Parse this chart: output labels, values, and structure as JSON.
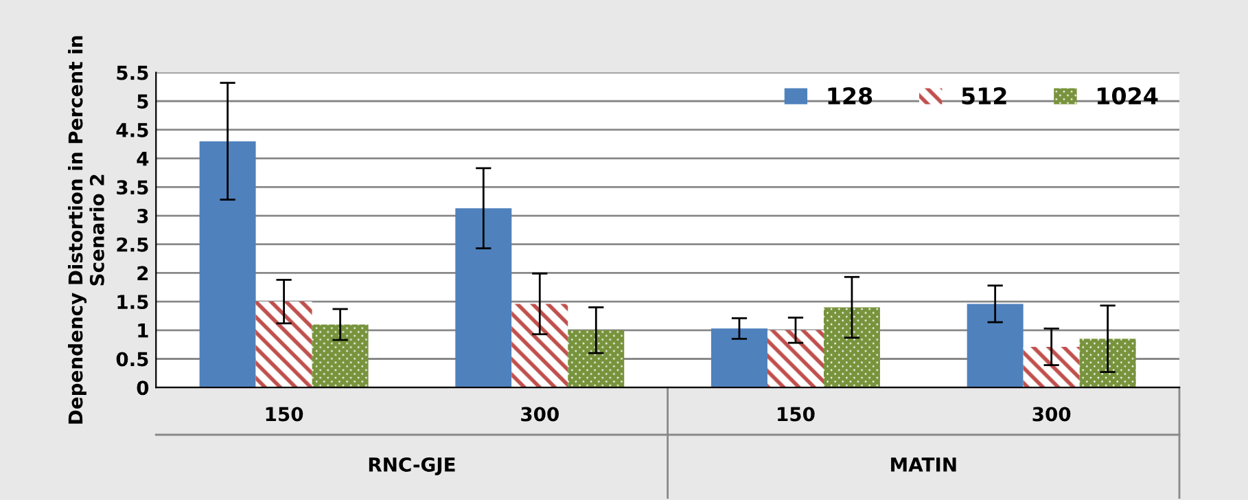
{
  "chart_data": {
    "type": "bar",
    "ylabel": "Dependency Distortion in Percent in Scenario 2",
    "categories": [
      "150",
      "300",
      "150",
      "300"
    ],
    "annotations": [
      "RNC-GJE",
      "MATIN"
    ],
    "series": [
      {
        "name": "128",
        "color": "#4f81bd",
        "values": [
          4.3,
          3.13,
          1.03,
          1.46
        ],
        "errors": [
          1.02,
          0.7,
          0.18,
          0.32
        ]
      },
      {
        "name": "512",
        "color": "#c0504d",
        "values": [
          1.5,
          1.46,
          1.0,
          0.71
        ],
        "errors": [
          0.38,
          0.53,
          0.22,
          0.32
        ]
      },
      {
        "name": "1024",
        "color": "#77933c",
        "values": [
          1.1,
          1.0,
          1.4,
          0.85
        ],
        "errors": [
          0.27,
          0.4,
          0.53,
          0.58
        ]
      }
    ],
    "ylim": [
      0,
      5.5
    ],
    "yticks": [
      0,
      0.5,
      1,
      1.5,
      2,
      2.5,
      3,
      3.5,
      4,
      4.5,
      5,
      5.5
    ],
    "grid": "y",
    "legend": "top right"
  }
}
